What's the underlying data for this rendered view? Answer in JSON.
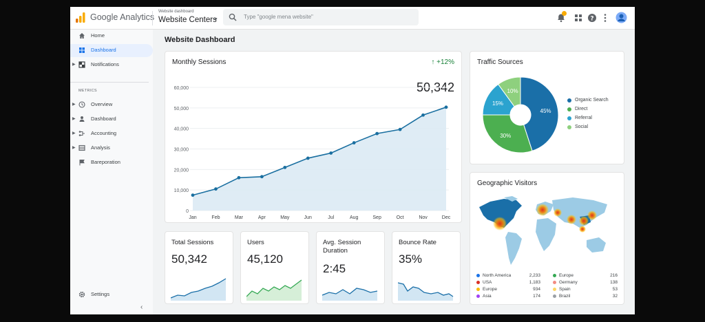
{
  "app": {
    "brand": "Google Analytics",
    "property_caption": "Website dashboard",
    "property_name": "Website Centers",
    "search_placeholder": "Type \"google mena website\""
  },
  "sidebar": {
    "items": [
      {
        "label": "Home"
      },
      {
        "label": "Dashboard"
      },
      {
        "label": "Notifications"
      }
    ],
    "section": "METRICS",
    "metrics_items": [
      {
        "label": "Overview"
      },
      {
        "label": "Dashboard"
      },
      {
        "label": "Accounting"
      },
      {
        "label": "Analysis"
      },
      {
        "label": "Bareporation"
      }
    ],
    "settings": "Settings"
  },
  "page_title": "Website Dashboard",
  "monthly": {
    "title": "Monthly Sessions",
    "growth": "+12%",
    "total": "50,342"
  },
  "traffic": {
    "title": "Traffic Sources"
  },
  "geo": {
    "title": "Geographic Visitors",
    "rows": [
      {
        "name": "North America",
        "value": "2,233",
        "color": "#1a73e8"
      },
      {
        "name": "USA",
        "value": "1,183",
        "color": "#d93025"
      },
      {
        "name": "Europe",
        "value": "934",
        "color": "#fbbc04"
      },
      {
        "name": "Asia",
        "value": "174",
        "color": "#a142f4"
      },
      {
        "name": "Europe",
        "value": "216",
        "color": "#34a853"
      },
      {
        "name": "Germany",
        "value": "138",
        "color": "#f28b82"
      },
      {
        "name": "Spain",
        "value": "53",
        "color": "#fdd663"
      },
      {
        "name": "Brazil",
        "value": "32",
        "color": "#9aa0a6"
      }
    ]
  },
  "kpis": [
    {
      "title": "Total Sessions",
      "value": "50,342"
    },
    {
      "title": "Users",
      "value": "45,120"
    },
    {
      "title": "Avg. Session Duration",
      "value": "2:45"
    },
    {
      "title": "Bounce Rate",
      "value": "35%"
    }
  ],
  "colors": {
    "accent": "#1a73e8",
    "line": "#1a6fa0",
    "area": "#dbeaf4",
    "positive": "#188038"
  },
  "chart_data": [
    {
      "type": "area",
      "title": "Monthly Sessions",
      "categories": [
        "Jan",
        "Feb",
        "Mar",
        "Apr",
        "May",
        "Jun",
        "Jul",
        "Aug",
        "Sep",
        "Oct",
        "Nov",
        "Dec"
      ],
      "values": [
        7500,
        10500,
        16000,
        16500,
        21000,
        25500,
        28000,
        33000,
        37500,
        39500,
        46500,
        50342
      ],
      "yticks": [
        "0",
        "10,000",
        "20,000",
        "30,000",
        "40,000",
        "50,000",
        "60,000"
      ],
      "ylim": [
        0,
        60000
      ],
      "grid": true
    },
    {
      "type": "pie",
      "title": "Traffic Sources",
      "labels": [
        "Organic Search",
        "Direct",
        "Referral",
        "Social"
      ],
      "values": [
        45,
        30,
        15,
        10
      ],
      "value_labels": [
        "45%",
        "30%",
        "15%",
        "10%"
      ],
      "colors": [
        "#1a6fa8",
        "#4caf50",
        "#2ba3cf",
        "#8ed07e"
      ],
      "legend": "right"
    }
  ]
}
